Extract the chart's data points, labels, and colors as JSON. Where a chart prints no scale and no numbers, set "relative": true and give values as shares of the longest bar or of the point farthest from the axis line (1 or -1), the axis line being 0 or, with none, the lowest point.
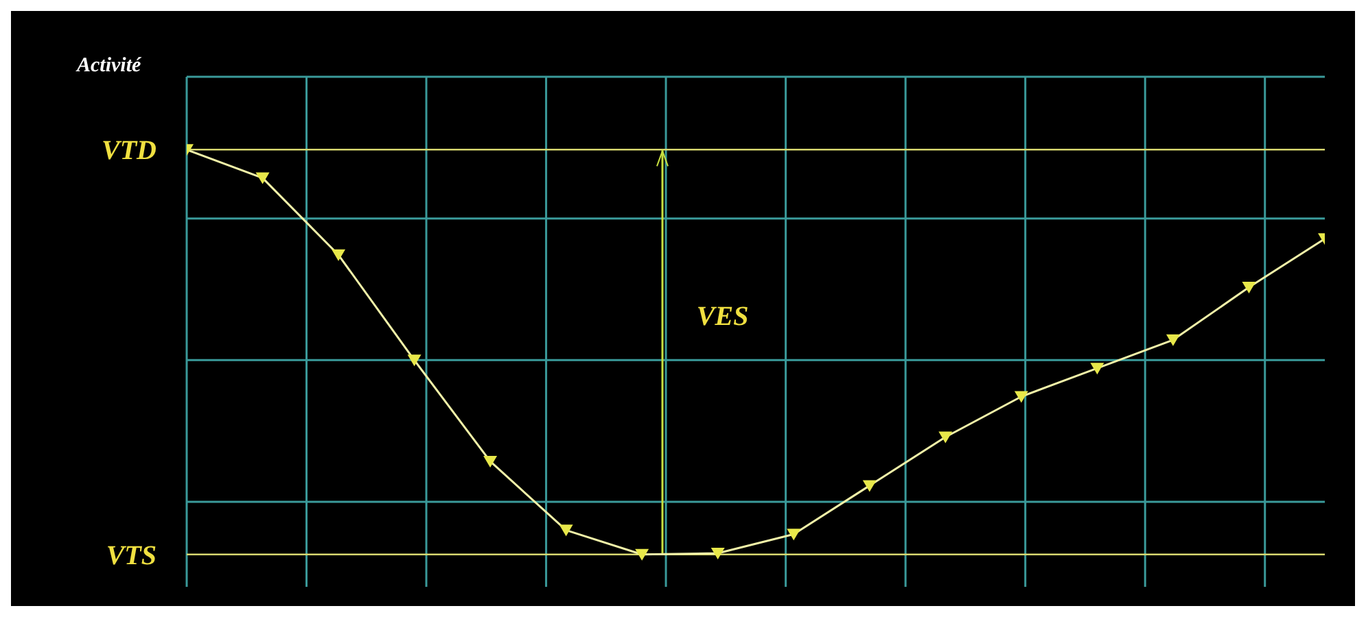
{
  "chart_data": {
    "type": "line",
    "relative": true,
    "ylabel": "Activité",
    "categories": [
      null,
      null,
      null,
      null,
      null,
      null,
      null,
      null,
      null,
      null,
      null,
      null,
      null,
      null,
      null,
      null
    ],
    "series": [
      {
        "color": "#f2f2a8",
        "values": [
          1,
          0.93,
          0.74,
          0.48,
          0.23,
          0.06,
          0,
          0.003,
          0.05,
          0.17,
          0.29,
          0.39,
          0.46,
          0.53,
          0.66,
          0.78
        ]
      }
    ],
    "marker": "triangle",
    "grid": true,
    "tick_labels": false,
    "ref_lines": [
      {
        "axis": "y",
        "value": 1,
        "label": "VTD",
        "color": "#d8d870"
      },
      {
        "axis": "y",
        "value": 0,
        "label": "VTS",
        "color": "#d8d870"
      }
    ],
    "annotations": [
      "VES"
    ]
  }
}
